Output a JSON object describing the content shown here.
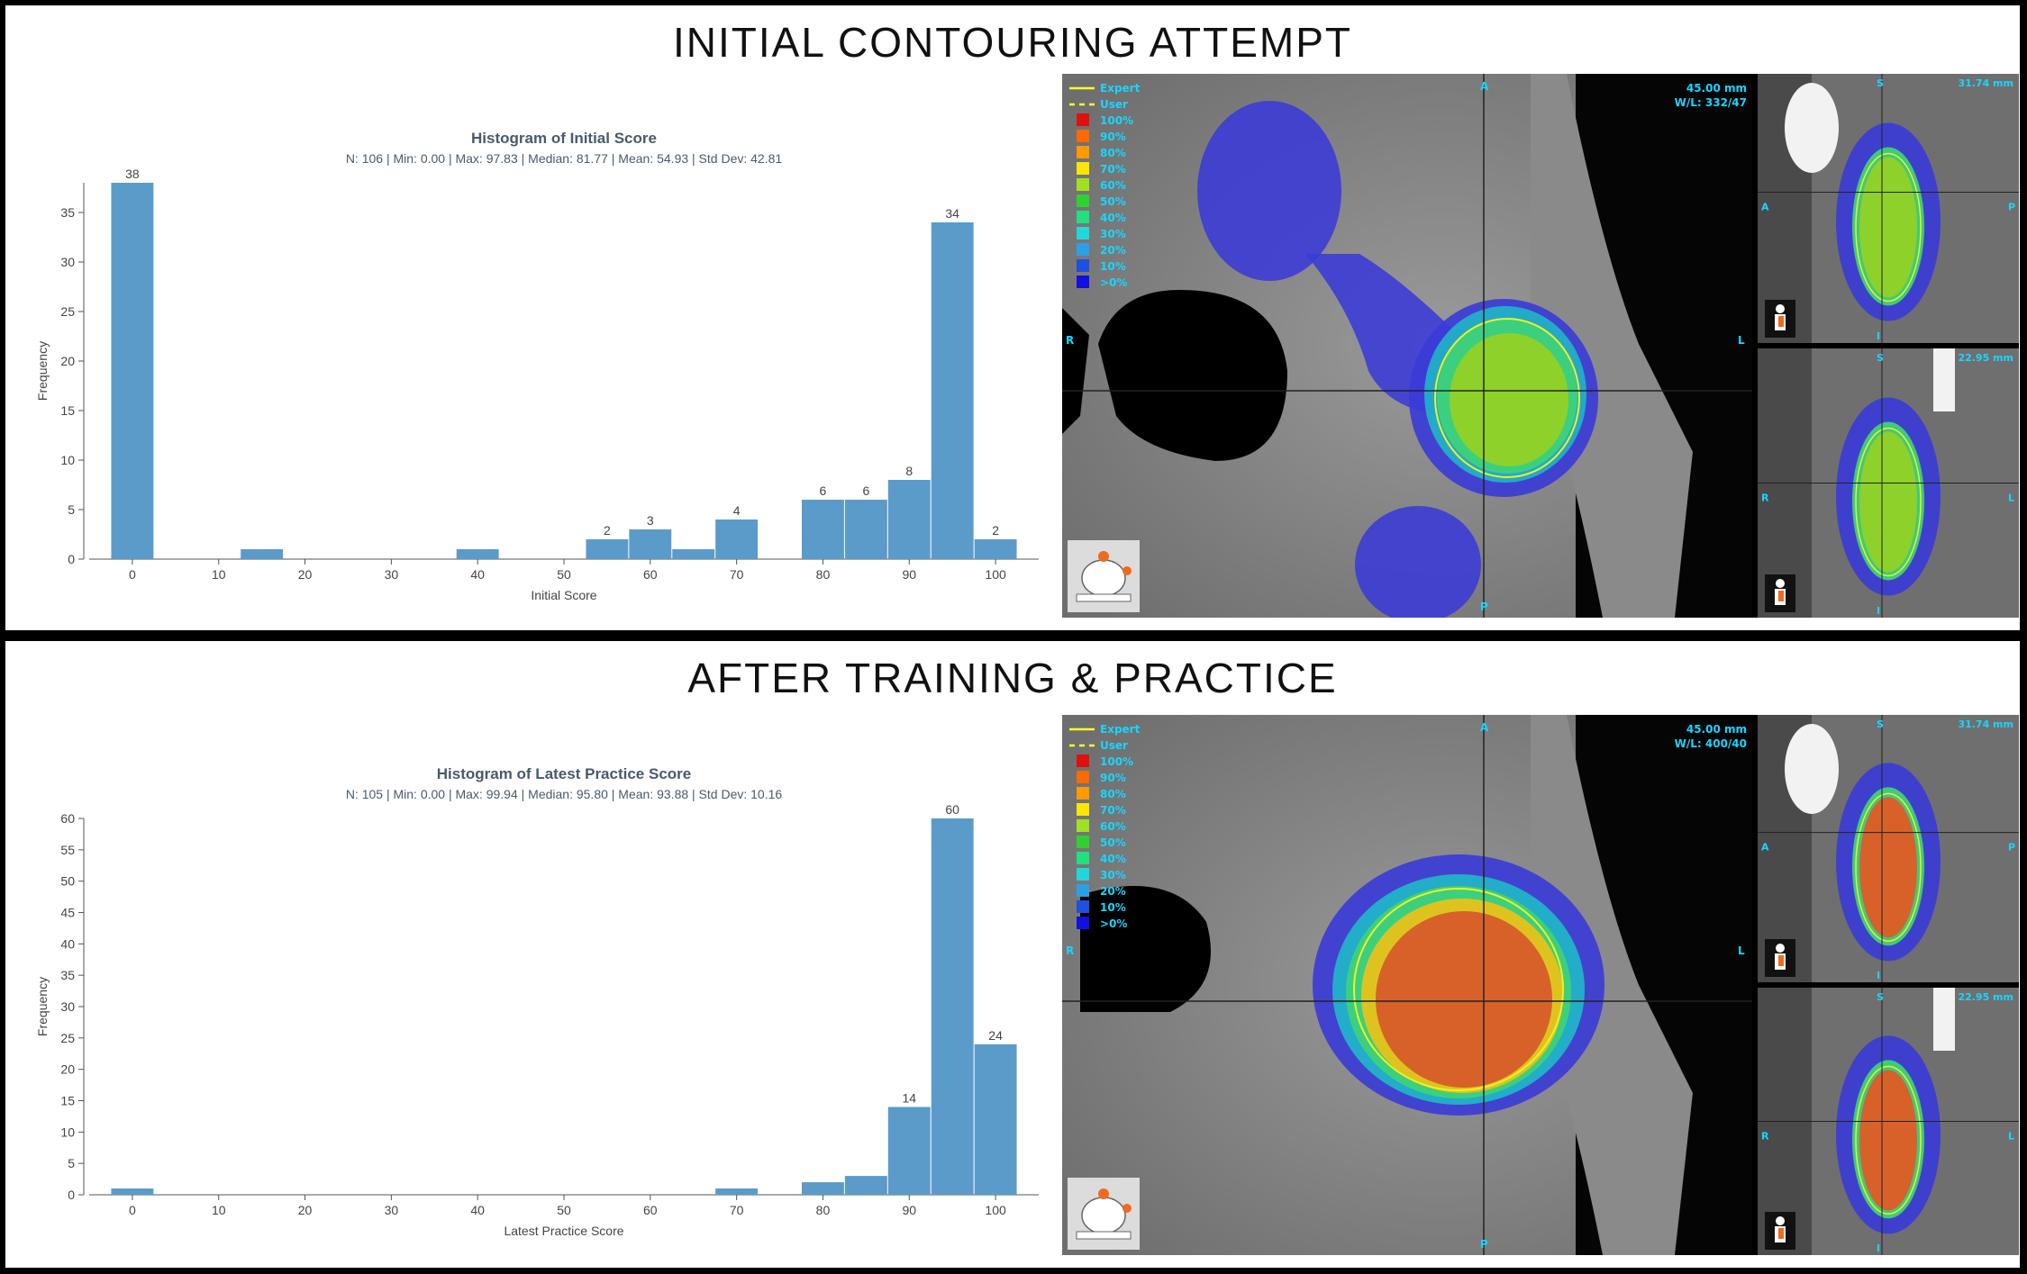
{
  "sections": [
    {
      "heading": "INITIAL CONTOURING ATTEMPT",
      "chart_data": {
        "type": "bar",
        "title": "Histogram of Initial Score",
        "subtitle": "N: 106 | Min: 0.00 | Max: 97.83 | Median: 81.77 | Mean: 54.93 | Std Dev: 42.81",
        "xlabel": "Initial Score",
        "ylabel": "Frequency",
        "xlim": [
          -5,
          105
        ],
        "ylim": [
          0,
          38
        ],
        "xticks": [
          0,
          10,
          20,
          30,
          40,
          50,
          60,
          70,
          80,
          90,
          100
        ],
        "yticks": [
          0,
          5,
          10,
          15,
          20,
          25,
          30,
          35
        ],
        "bin_width": 5,
        "bars": [
          {
            "x": 0,
            "value": 38,
            "label": "38"
          },
          {
            "x": 15,
            "value": 1,
            "label": ""
          },
          {
            "x": 40,
            "value": 1,
            "label": ""
          },
          {
            "x": 55,
            "value": 2,
            "label": "2"
          },
          {
            "x": 60,
            "value": 3,
            "label": "3"
          },
          {
            "x": 65,
            "value": 1,
            "label": ""
          },
          {
            "x": 70,
            "value": 4,
            "label": "4"
          },
          {
            "x": 80,
            "value": 6,
            "label": "6"
          },
          {
            "x": 85,
            "value": 6,
            "label": "6"
          },
          {
            "x": 90,
            "value": 8,
            "label": "8"
          },
          {
            "x": 95,
            "value": 34,
            "label": "34"
          },
          {
            "x": 100,
            "value": 2,
            "label": "2"
          }
        ],
        "color": "#5b9bc9"
      },
      "viewer": {
        "legend": [
          "Expert",
          "User",
          "100%",
          "90%",
          "80%",
          "70%",
          "60%",
          "50%",
          "40%",
          "30%",
          "20%",
          "10%",
          ">0%"
        ],
        "legend_colors": [
          "#ffff33",
          "#ffff33",
          "#e01010",
          "#ff6a00",
          "#ff9a00",
          "#ffe600",
          "#a0e020",
          "#30d030",
          "#20e080",
          "#20d8d8",
          "#2aa0e8",
          "#2050e0",
          "#1010e0"
        ],
        "readout": {
          "distance": "45.00 mm",
          "wl": "W/L: 332/47"
        },
        "orientation": {
          "top": "A",
          "bottom": "P",
          "left": "R",
          "right": "L"
        },
        "side_top": {
          "readout": "31.74 mm",
          "top": "S",
          "bottom": "I",
          "left": "A",
          "right": "P"
        },
        "side_bottom": {
          "readout": "22.95 mm",
          "top": "S",
          "bottom": "I",
          "left": "R",
          "right": "L"
        },
        "dose_color": "#8ed12a"
      }
    },
    {
      "heading": "AFTER TRAINING & PRACTICE",
      "chart_data": {
        "type": "bar",
        "title": "Histogram of Latest Practice Score",
        "subtitle": "N: 105 | Min: 0.00 | Max: 99.94 | Median: 95.80 | Mean: 93.88 | Std Dev: 10.16",
        "xlabel": "Latest Practice Score",
        "ylabel": "Frequency",
        "xlim": [
          -5,
          105
        ],
        "ylim": [
          0,
          60
        ],
        "xticks": [
          0,
          10,
          20,
          30,
          40,
          50,
          60,
          70,
          80,
          90,
          100
        ],
        "yticks": [
          0,
          5,
          10,
          15,
          20,
          25,
          30,
          35,
          40,
          45,
          50,
          55,
          60
        ],
        "bin_width": 5,
        "bars": [
          {
            "x": 0,
            "value": 1,
            "label": ""
          },
          {
            "x": 70,
            "value": 1,
            "label": ""
          },
          {
            "x": 80,
            "value": 2,
            "label": ""
          },
          {
            "x": 85,
            "value": 3,
            "label": ""
          },
          {
            "x": 90,
            "value": 14,
            "label": "14"
          },
          {
            "x": 95,
            "value": 60,
            "label": "60"
          },
          {
            "x": 100,
            "value": 24,
            "label": "24"
          }
        ],
        "color": "#5b9bc9"
      },
      "viewer": {
        "legend": [
          "Expert",
          "User",
          "100%",
          "90%",
          "80%",
          "70%",
          "60%",
          "50%",
          "40%",
          "30%",
          "20%",
          "10%",
          ">0%"
        ],
        "legend_colors": [
          "#ffff33",
          "#ffff33",
          "#e01010",
          "#ff6a00",
          "#ff9a00",
          "#ffe600",
          "#a0e020",
          "#30d030",
          "#20e080",
          "#20d8d8",
          "#2aa0e8",
          "#2050e0",
          "#1010e0"
        ],
        "readout": {
          "distance": "45.00 mm",
          "wl": "W/L: 400/40"
        },
        "orientation": {
          "top": "A",
          "bottom": "P",
          "left": "R",
          "right": "L"
        },
        "side_top": {
          "readout": "31.74 mm",
          "top": "S",
          "bottom": "I",
          "left": "A",
          "right": "P"
        },
        "side_bottom": {
          "readout": "22.95 mm",
          "top": "S",
          "bottom": "I",
          "left": "R",
          "right": "L"
        },
        "dose_color": "#d8612a"
      }
    }
  ]
}
